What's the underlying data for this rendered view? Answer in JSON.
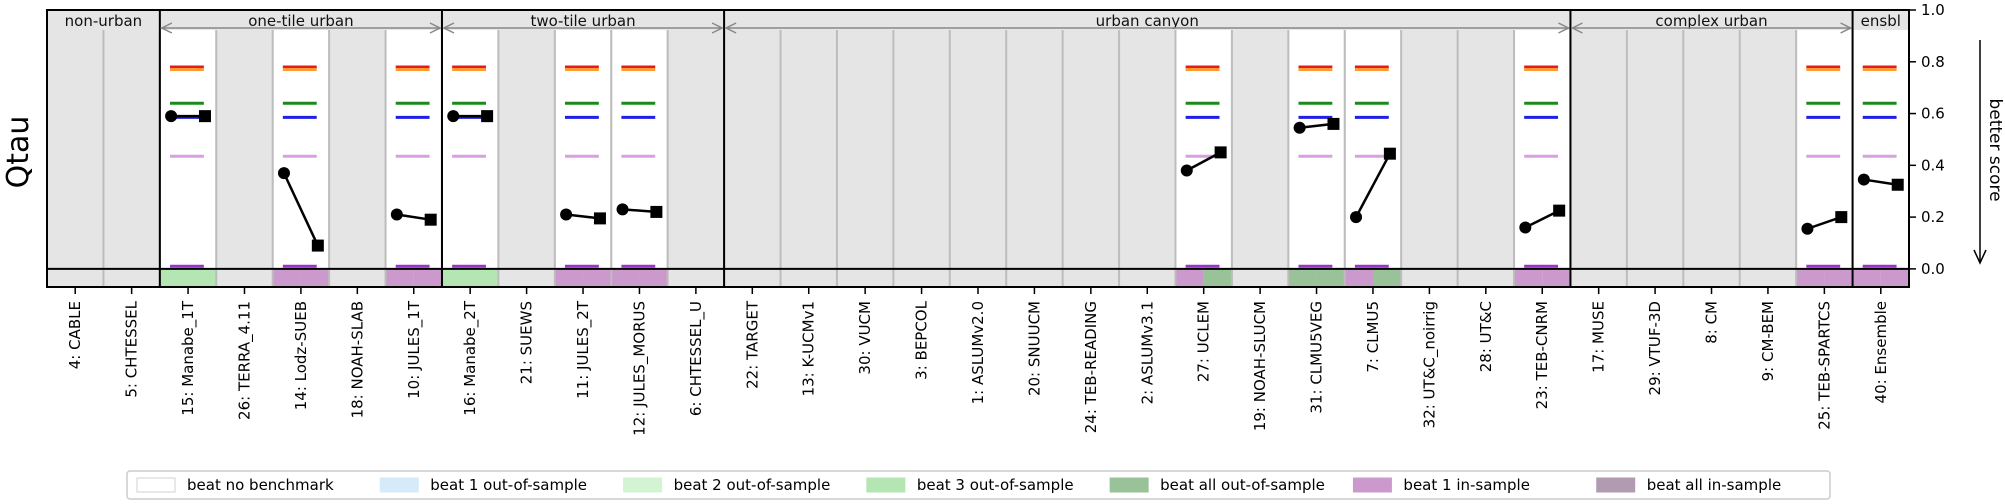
{
  "chart_data": {
    "type": "scatter",
    "ylabel": "Qtau",
    "right_label": "better score",
    "ylim": [
      -0.07,
      1.0
    ],
    "yticks": [
      "0.0",
      "0.2",
      "0.4",
      "0.6",
      "0.8",
      "1.0"
    ],
    "ytick_values": [
      0.0,
      0.2,
      0.4,
      0.6,
      0.8,
      1.0
    ],
    "groups": [
      {
        "label": "non-urban",
        "count": 2
      },
      {
        "label": "one-tile urban",
        "count": 5
      },
      {
        "label": "two-tile urban",
        "count": 5
      },
      {
        "label": "urban canyon",
        "count": 15
      },
      {
        "label": "complex urban",
        "count": 5
      },
      {
        "label": "ensbl",
        "count": 1
      }
    ],
    "models": [
      {
        "name": "4: CABLE",
        "white": false
      },
      {
        "name": "5: CHTESSEL",
        "white": false
      },
      {
        "name": "15: Manabe_1T",
        "white": true,
        "bench": [
          0.78,
          0.77,
          0.64,
          0.585,
          0.435,
          0.01
        ],
        "first": 0.59,
        "last": 0.59,
        "bottom": [
          "#b3e6b3",
          "#b3e6b3"
        ]
      },
      {
        "name": "26: TERRA_4.11",
        "white": false
      },
      {
        "name": "14: Lodz-SUEB",
        "white": true,
        "bench": [
          0.78,
          0.77,
          0.64,
          0.585,
          0.435,
          0.01
        ],
        "first": 0.37,
        "last": 0.09,
        "bottom": [
          "#cc99cc",
          "#cc99cc"
        ]
      },
      {
        "name": "18: NOAH-SLAB",
        "white": false
      },
      {
        "name": "10: JULES_1T",
        "white": true,
        "bench": [
          0.78,
          0.77,
          0.64,
          0.585,
          0.435,
          0.01
        ],
        "first": 0.21,
        "last": 0.19,
        "bottom": [
          "#cc99cc",
          "#cc99cc"
        ]
      },
      {
        "name": "16: Manabe_2T",
        "white": true,
        "bench": [
          0.78,
          0.77,
          0.64,
          0.585,
          0.435,
          0.01
        ],
        "first": 0.59,
        "last": 0.59,
        "bottom": [
          "#b3e6b3",
          "#b3e6b3"
        ]
      },
      {
        "name": "21: SUEWS",
        "white": false
      },
      {
        "name": "11: JULES_2T",
        "white": true,
        "bench": [
          0.78,
          0.77,
          0.64,
          0.585,
          0.435,
          0.01
        ],
        "first": 0.21,
        "last": 0.195,
        "bottom": [
          "#cc99cc",
          "#cc99cc"
        ]
      },
      {
        "name": "12: JULES_MORUS",
        "white": true,
        "bench": [
          0.78,
          0.77,
          0.64,
          0.585,
          0.435,
          0.01
        ],
        "first": 0.23,
        "last": 0.22,
        "bottom": [
          "#cc99cc",
          "#cc99cc"
        ]
      },
      {
        "name": "6: CHTESSEL_U",
        "white": false
      },
      {
        "name": "22: TARGET",
        "white": false
      },
      {
        "name": "13: K-UCMv1",
        "white": false
      },
      {
        "name": "30: VUCM",
        "white": false
      },
      {
        "name": "3: BEPCOL",
        "white": false
      },
      {
        "name": "1: ASLUMv2.0",
        "white": false
      },
      {
        "name": "20: SNUUCM",
        "white": false
      },
      {
        "name": "24: TEB-READING",
        "white": false
      },
      {
        "name": "2: ASLUMv3.1",
        "white": false
      },
      {
        "name": "27: UCLEM",
        "white": true,
        "bench": [
          0.78,
          0.77,
          0.64,
          0.585,
          0.435,
          0.01
        ],
        "first": 0.38,
        "last": 0.45,
        "bottom": [
          "#cc99cc",
          "#99c299"
        ]
      },
      {
        "name": "19: NOAH-SLUCM",
        "white": false
      },
      {
        "name": "31: CLMU5VEG",
        "white": true,
        "bench": [
          0.78,
          0.77,
          0.64,
          0.585,
          0.435,
          0.01
        ],
        "first": 0.545,
        "last": 0.56,
        "bottom": [
          "#99c299",
          "#99c299"
        ]
      },
      {
        "name": "7: CLMU5",
        "white": true,
        "bench": [
          0.78,
          0.77,
          0.64,
          0.585,
          0.435,
          0.01
        ],
        "first": 0.2,
        "last": 0.445,
        "bottom": [
          "#cc99cc",
          "#99c299"
        ]
      },
      {
        "name": "32: UT&C_noirrig",
        "white": false
      },
      {
        "name": "28: UT&C",
        "white": false
      },
      {
        "name": "23: TEB-CNRM",
        "white": true,
        "bench": [
          0.78,
          0.77,
          0.64,
          0.585,
          0.435,
          0.01
        ],
        "first": 0.16,
        "last": 0.225,
        "bottom": [
          "#cc99cc",
          "#cc99cc"
        ]
      },
      {
        "name": "17: MUSE",
        "white": false
      },
      {
        "name": "29: VTUF-3D",
        "white": false
      },
      {
        "name": "8: CM",
        "white": false
      },
      {
        "name": "9: CM-BEM",
        "white": false
      },
      {
        "name": "25: TEB-SPARTCS",
        "white": true,
        "bench": [
          0.78,
          0.77,
          0.64,
          0.585,
          0.435,
          0.01
        ],
        "first": 0.155,
        "last": 0.2,
        "bottom": [
          "#cc99cc",
          "#cc99cc"
        ]
      },
      {
        "name": "40: Ensemble",
        "white": true,
        "bench": [
          0.78,
          0.77,
          0.64,
          0.585,
          0.435,
          0.01
        ],
        "first": 0.345,
        "last": 0.325,
        "bottom": [
          "#cc99cc",
          "#cc99cc"
        ]
      }
    ],
    "benchmark_colors": [
      "#e41a1c",
      "#ff9933",
      "#1b8a1b",
      "#1f1fe6",
      "#d8a0e0",
      "#9933cc"
    ],
    "legend": [
      {
        "label": "beat no benchmark",
        "color": "#ffffff"
      },
      {
        "label": "beat 1 out-of-sample",
        "color": "#d6ebfa"
      },
      {
        "label": "beat 2 out-of-sample",
        "color": "#d2f4d2"
      },
      {
        "label": "beat 3 out-of-sample",
        "color": "#b3e6b3"
      },
      {
        "label": "beat all out-of-sample",
        "color": "#99c299"
      },
      {
        "label": "beat 1 in-sample",
        "color": "#cc99cc"
      },
      {
        "label": "beat all in-sample",
        "color": "#b39ab3"
      }
    ]
  }
}
